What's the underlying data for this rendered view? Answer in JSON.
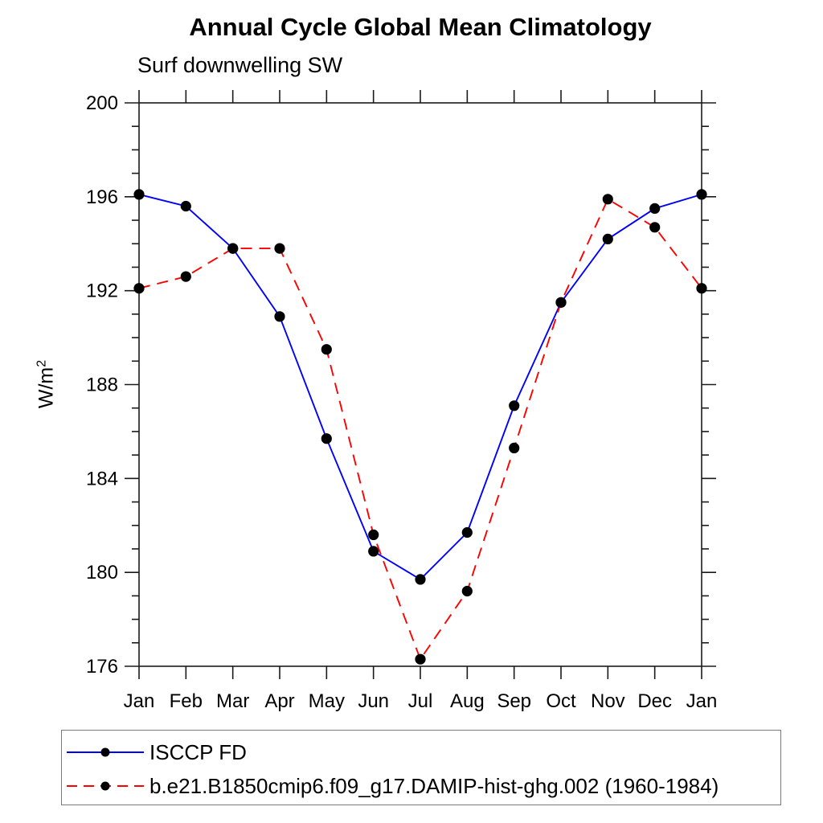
{
  "page_title": "Annual Cycle Global Mean Climatology",
  "chart_data": {
    "type": "line",
    "title": "Annual Cycle Global Mean Climatology",
    "subtitle": "Surf downwelling SW",
    "ylabel": "W/m²",
    "ylabel_parts": {
      "base": "W/m",
      "exp": "2"
    },
    "xlabel": "",
    "categories": [
      "Jan",
      "Feb",
      "Mar",
      "Apr",
      "May",
      "Jun",
      "Jul",
      "Aug",
      "Sep",
      "Oct",
      "Nov",
      "Dec",
      "Jan"
    ],
    "ylim": [
      176,
      200
    ],
    "ytick_major": [
      176,
      180,
      184,
      188,
      192,
      196,
      200
    ],
    "ytick_minor_step": 1,
    "grid": false,
    "frame_color": "#1a1a1a",
    "marker_color": "#000000",
    "legend_position": "bottom",
    "series": [
      {
        "name": "ISCCP FD",
        "color": "#0000ff",
        "style": "solid",
        "marker": "circle",
        "values": [
          196.1,
          195.6,
          193.8,
          190.9,
          185.7,
          180.9,
          179.7,
          181.7,
          187.1,
          191.5,
          194.2,
          195.5,
          196.1
        ]
      },
      {
        "name": "b.e21.B1850cmip6.f09_g17.DAMIP-hist-ghg.002 (1960-1984)",
        "color": "#ff0000",
        "style": "dashed",
        "marker": "circle",
        "values": [
          192.1,
          192.6,
          193.8,
          193.8,
          189.5,
          181.6,
          176.3,
          179.2,
          185.3,
          191.5,
          195.9,
          194.7,
          192.1
        ]
      }
    ]
  }
}
